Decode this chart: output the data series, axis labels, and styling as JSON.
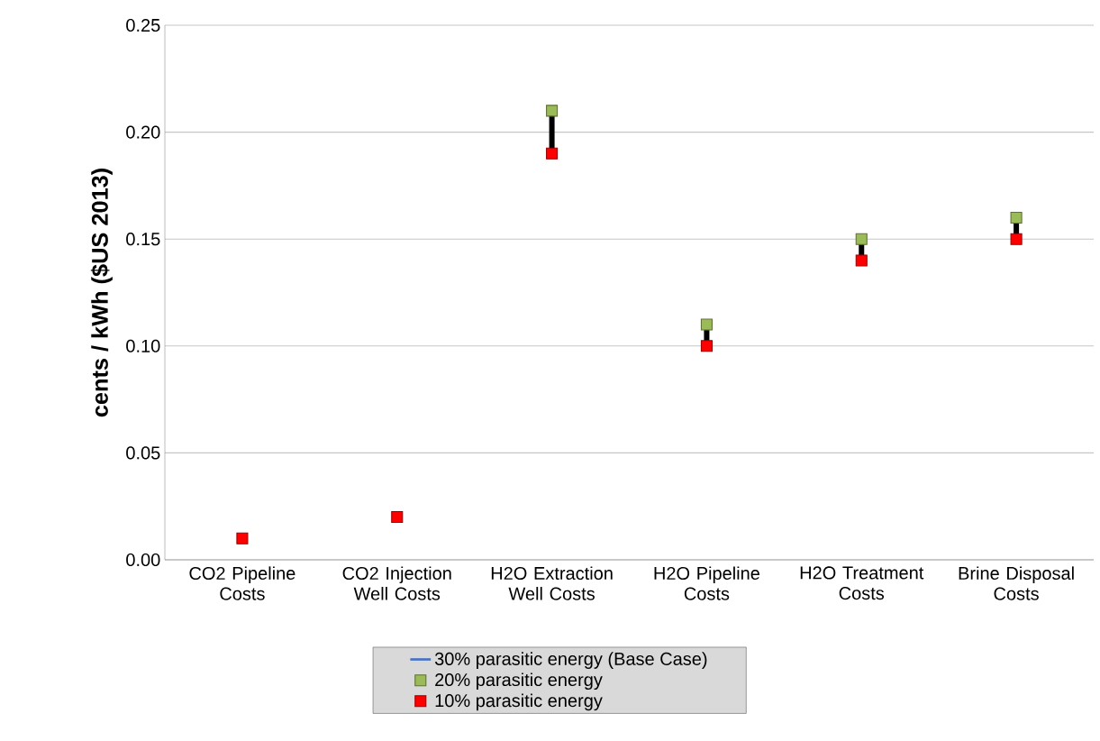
{
  "chart_data": {
    "type": "scatter",
    "ylabel": "cents / kWh ($US 2013)",
    "categories": [
      "CO2 Pipeline Costs",
      "CO2 Injection Well Costs",
      "H2O Extraction Well Costs",
      "H2O Pipeline Costs",
      "H2O Treatment Costs",
      "Brine Disposal Costs"
    ],
    "series": [
      {
        "name": "30% parasitic energy (Base Case)",
        "color": "#4472c4",
        "values": [
          null,
          null,
          null,
          null,
          null,
          null
        ]
      },
      {
        "name": "20% parasitic energy",
        "color": "#9bbb59",
        "values": [
          null,
          null,
          0.21,
          0.11,
          0.15,
          0.16
        ]
      },
      {
        "name": "10% parasitic energy",
        "color": "#ff0000",
        "values": [
          0.01,
          0.02,
          0.19,
          0.1,
          0.14,
          0.15
        ]
      }
    ],
    "ylim": [
      0,
      0.25
    ],
    "yticks": [
      {
        "value": 0,
        "label": "0.00"
      },
      {
        "value": 0.05,
        "label": "0.05"
      },
      {
        "value": 0.1,
        "label": "0.10"
      },
      {
        "value": 0.15,
        "label": "0.15"
      },
      {
        "value": 0.2,
        "label": "0.20"
      },
      {
        "value": 0.25,
        "label": "0.25"
      }
    ],
    "grid": "y",
    "legend": "bottom",
    "marker": "square"
  }
}
